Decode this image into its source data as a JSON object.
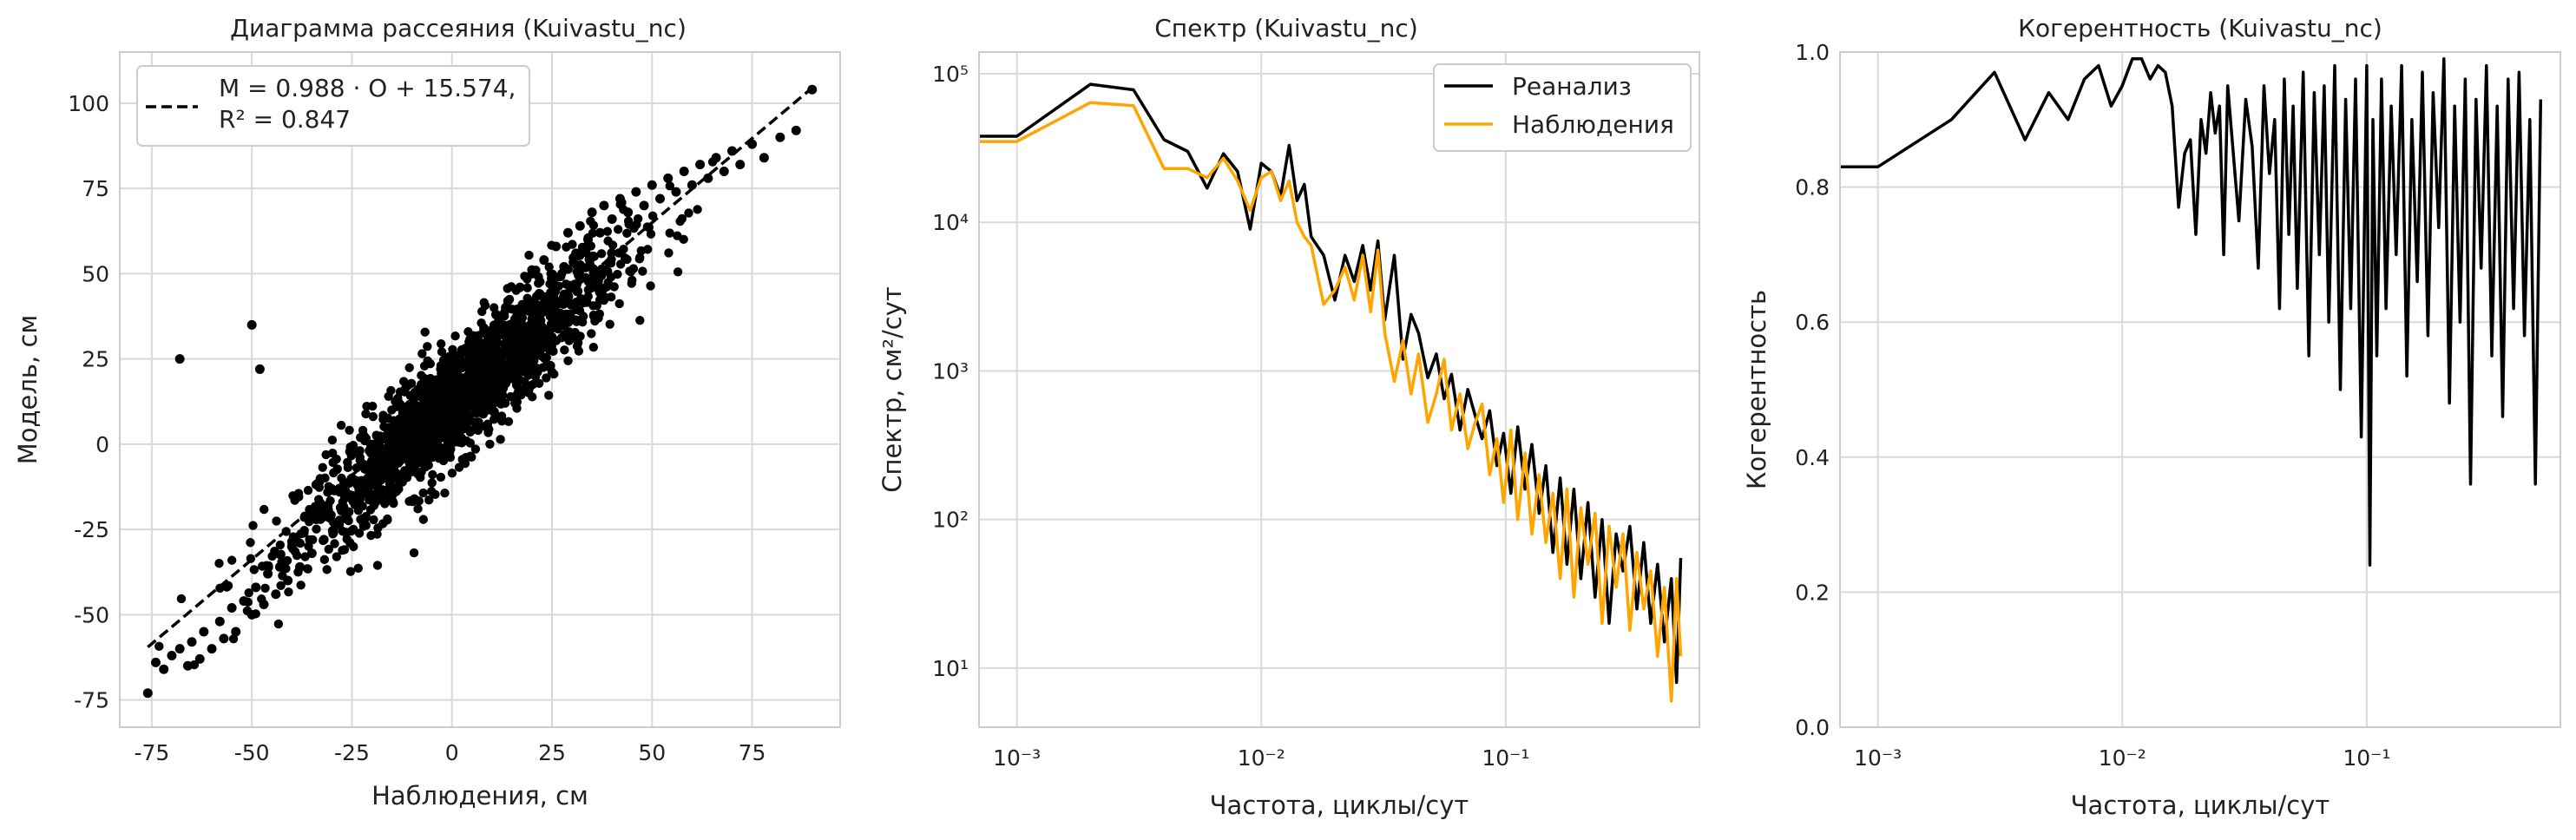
{
  "chart_data": [
    {
      "type": "scatter",
      "title": "Диаграмма рассеяния (Kuivastu_nc)",
      "xlabel": "Наблюдения, см",
      "ylabel": "Модель, см",
      "xlim": [
        -83,
        97
      ],
      "ylim": [
        -83,
        115
      ],
      "xticks": [
        -75,
        -50,
        -25,
        0,
        25,
        50,
        75
      ],
      "yticks": [
        -75,
        -50,
        -25,
        0,
        25,
        50,
        75,
        100
      ],
      "grid": true,
      "legend_position": "top-left",
      "legend": [
        "M = 0.988 · O + 15.574,",
        "R² = 0.847"
      ],
      "fit": {
        "slope": 0.988,
        "intercept": 15.574,
        "x_range": [
          -76,
          90
        ]
      },
      "points_color": "#000000",
      "points": [
        [
          -76,
          -73
        ],
        [
          -74,
          -64
        ],
        [
          -72,
          -66
        ],
        [
          -70,
          -62
        ],
        [
          -68,
          -60
        ],
        [
          -66,
          -65
        ],
        [
          -65,
          -58
        ],
        [
          -63,
          -63
        ],
        [
          -62,
          -55
        ],
        [
          -60,
          -60
        ],
        [
          -58,
          -52
        ],
        [
          -57,
          -57
        ],
        [
          -55,
          -48
        ],
        [
          -54,
          -55
        ],
        [
          -52,
          -46
        ],
        [
          -50,
          -50
        ],
        [
          -49,
          -42
        ],
        [
          -47,
          -47
        ],
        [
          -46,
          -38
        ],
        [
          -44,
          -44
        ],
        [
          -43,
          -36
        ],
        [
          -41,
          -40
        ],
        [
          -40,
          -30
        ],
        [
          -38,
          -36
        ],
        [
          -37,
          -26
        ],
        [
          -35,
          -32
        ],
        [
          -34,
          -22
        ],
        [
          -32,
          -28
        ],
        [
          -31,
          -18
        ],
        [
          -29,
          -24
        ],
        [
          -28,
          -14
        ],
        [
          -26,
          -20
        ],
        [
          -25,
          -10
        ],
        [
          -23,
          -16
        ],
        [
          -22,
          -6
        ],
        [
          -20,
          -12
        ],
        [
          -19,
          -2
        ],
        [
          -17,
          -8
        ],
        [
          -16,
          2
        ],
        [
          -14,
          -4
        ],
        [
          -13,
          6
        ],
        [
          -11,
          0
        ],
        [
          -10,
          10
        ],
        [
          -8,
          4
        ],
        [
          -7,
          14
        ],
        [
          -5,
          8
        ],
        [
          -4,
          18
        ],
        [
          -2,
          12
        ],
        [
          -1,
          22
        ],
        [
          1,
          16
        ],
        [
          2,
          26
        ],
        [
          4,
          20
        ],
        [
          5,
          30
        ],
        [
          7,
          24
        ],
        [
          8,
          34
        ],
        [
          10,
          28
        ],
        [
          11,
          38
        ],
        [
          13,
          32
        ],
        [
          14,
          42
        ],
        [
          16,
          36
        ],
        [
          17,
          46
        ],
        [
          19,
          40
        ],
        [
          20,
          50
        ],
        [
          22,
          44
        ],
        [
          23,
          54
        ],
        [
          25,
          48
        ],
        [
          26,
          58
        ],
        [
          28,
          52
        ],
        [
          29,
          62
        ],
        [
          31,
          56
        ],
        [
          32,
          64
        ],
        [
          34,
          60
        ],
        [
          35,
          68
        ],
        [
          37,
          62
        ],
        [
          38,
          70
        ],
        [
          40,
          66
        ],
        [
          42,
          72
        ],
        [
          44,
          68
        ],
        [
          46,
          74
        ],
        [
          48,
          70
        ],
        [
          50,
          76
        ],
        [
          52,
          72
        ],
        [
          54,
          78
        ],
        [
          56,
          74
        ],
        [
          58,
          80
        ],
        [
          60,
          76
        ],
        [
          62,
          82
        ],
        [
          64,
          78
        ],
        [
          66,
          84
        ],
        [
          68,
          80
        ],
        [
          70,
          86
        ],
        [
          72,
          82
        ],
        [
          75,
          88
        ],
        [
          78,
          84
        ],
        [
          82,
          90
        ],
        [
          86,
          92
        ],
        [
          90,
          104
        ],
        [
          -68,
          25
        ],
        [
          -50,
          35
        ],
        [
          -48,
          22
        ]
      ]
    },
    {
      "type": "line",
      "title": "Спектр (Kuivastu_nc)",
      "xlabel": "Частота, циклы/сут",
      "ylabel": "Спектр, см²/сут",
      "xscale": "log",
      "yscale": "log",
      "xlim": [
        0.0007,
        0.62
      ],
      "ylim": [
        4,
        140000
      ],
      "xticks": [
        0.001,
        0.01,
        0.1
      ],
      "xtick_labels": [
        "10⁻³",
        "10⁻²",
        "10⁻¹"
      ],
      "yticks": [
        10,
        100,
        1000,
        10000,
        100000
      ],
      "ytick_labels": [
        "10¹",
        "10²",
        "10³",
        "10⁴",
        "10⁵"
      ],
      "grid": true,
      "legend_position": "top-right",
      "series": [
        {
          "name": "Реанализ",
          "color": "#000000",
          "x": [
            0.0007,
            0.001,
            0.002,
            0.003,
            0.004,
            0.005,
            0.006,
            0.007,
            0.008,
            0.009,
            0.01,
            0.011,
            0.012,
            0.013,
            0.014,
            0.015,
            0.016,
            0.018,
            0.02,
            0.022,
            0.024,
            0.026,
            0.028,
            0.03,
            0.032,
            0.035,
            0.038,
            0.041,
            0.044,
            0.048,
            0.052,
            0.056,
            0.06,
            0.065,
            0.07,
            0.075,
            0.08,
            0.086,
            0.092,
            0.098,
            0.105,
            0.112,
            0.12,
            0.128,
            0.137,
            0.146,
            0.156,
            0.167,
            0.178,
            0.19,
            0.203,
            0.217,
            0.232,
            0.248,
            0.265,
            0.283,
            0.302,
            0.322,
            0.344,
            0.367,
            0.392,
            0.418,
            0.446,
            0.476,
            0.5,
            0.52
          ],
          "y": [
            38000,
            38000,
            85000,
            78000,
            36000,
            30000,
            17000,
            29000,
            22000,
            9000,
            25000,
            22000,
            15000,
            33000,
            14000,
            18000,
            8000,
            6000,
            3000,
            6000,
            4000,
            7000,
            3500,
            7500,
            2200,
            6000,
            1200,
            2400,
            1800,
            900,
            1300,
            650,
            950,
            400,
            750,
            500,
            350,
            540,
            230,
            380,
            150,
            420,
            160,
            320,
            110,
            230,
            60,
            190,
            50,
            160,
            40,
            130,
            30,
            100,
            20,
            80,
            45,
            90,
            25,
            70,
            20,
            50,
            15,
            40,
            8,
            55
          ]
        },
        {
          "name": "Наблюдения",
          "color": "#ffa500",
          "x": [
            0.0007,
            0.001,
            0.002,
            0.003,
            0.004,
            0.005,
            0.006,
            0.007,
            0.008,
            0.009,
            0.01,
            0.011,
            0.012,
            0.013,
            0.014,
            0.015,
            0.016,
            0.018,
            0.02,
            0.022,
            0.024,
            0.026,
            0.028,
            0.03,
            0.032,
            0.035,
            0.038,
            0.041,
            0.044,
            0.048,
            0.052,
            0.056,
            0.06,
            0.065,
            0.07,
            0.075,
            0.08,
            0.086,
            0.092,
            0.098,
            0.105,
            0.112,
            0.12,
            0.128,
            0.137,
            0.146,
            0.156,
            0.167,
            0.178,
            0.19,
            0.203,
            0.217,
            0.232,
            0.248,
            0.265,
            0.283,
            0.302,
            0.322,
            0.344,
            0.367,
            0.392,
            0.418,
            0.446,
            0.476,
            0.5,
            0.52
          ],
          "y": [
            35000,
            35000,
            64000,
            61000,
            23000,
            23000,
            20000,
            27000,
            19000,
            12000,
            20000,
            22000,
            14000,
            19000,
            10000,
            8000,
            7000,
            2800,
            3500,
            5000,
            3000,
            6000,
            2500,
            6500,
            1800,
            850,
            1600,
            700,
            1300,
            450,
            700,
            1200,
            400,
            700,
            300,
            450,
            600,
            200,
            350,
            130,
            400,
            100,
            280,
            80,
            200,
            70,
            150,
            40,
            160,
            30,
            120,
            50,
            110,
            20,
            90,
            35,
            80,
            18,
            60,
            25,
            45,
            12,
            35,
            6,
            40,
            12
          ]
        }
      ]
    },
    {
      "type": "line",
      "title": "Когерентность (Kuivastu_nc)",
      "xlabel": "Частота, циклы/сут",
      "ylabel": "Когерентность",
      "xscale": "log",
      "xlim": [
        0.0007,
        0.62
      ],
      "ylim": [
        0,
        1
      ],
      "xticks": [
        0.001,
        0.01,
        0.1
      ],
      "xtick_labels": [
        "10⁻³",
        "10⁻²",
        "10⁻¹"
      ],
      "yticks": [
        0,
        0.2,
        0.4,
        0.6,
        0.8,
        1.0
      ],
      "ytick_labels": [
        "0.0",
        "0.2",
        "0.4",
        "0.6",
        "0.8",
        "1.0"
      ],
      "grid": true,
      "series": [
        {
          "color": "#000000",
          "x": [
            0.0007,
            0.001,
            0.002,
            0.003,
            0.004,
            0.005,
            0.006,
            0.007,
            0.008,
            0.009,
            0.01,
            0.011,
            0.012,
            0.013,
            0.014,
            0.015,
            0.016,
            0.017,
            0.018,
            0.019,
            0.02,
            0.021,
            0.022,
            0.023,
            0.024,
            0.025,
            0.026,
            0.027,
            0.028,
            0.03,
            0.032,
            0.034,
            0.036,
            0.038,
            0.04,
            0.042,
            0.044,
            0.046,
            0.048,
            0.05,
            0.052,
            0.055,
            0.058,
            0.061,
            0.064,
            0.067,
            0.07,
            0.074,
            0.078,
            0.082,
            0.086,
            0.09,
            0.095,
            0.1,
            0.103,
            0.106,
            0.11,
            0.115,
            0.12,
            0.126,
            0.132,
            0.139,
            0.146,
            0.153,
            0.161,
            0.169,
            0.178,
            0.187,
            0.197,
            0.207,
            0.218,
            0.229,
            0.241,
            0.253,
            0.266,
            0.28,
            0.294,
            0.309,
            0.325,
            0.342,
            0.36,
            0.379,
            0.399,
            0.42,
            0.442,
            0.465,
            0.49,
            0.515
          ],
          "y": [
            0.83,
            0.83,
            0.9,
            0.97,
            0.87,
            0.94,
            0.9,
            0.96,
            0.98,
            0.92,
            0.95,
            0.99,
            0.99,
            0.96,
            0.98,
            0.97,
            0.92,
            0.77,
            0.85,
            0.87,
            0.73,
            0.9,
            0.85,
            0.94,
            0.88,
            0.92,
            0.7,
            0.95,
            0.88,
            0.75,
            0.93,
            0.86,
            0.68,
            0.95,
            0.82,
            0.9,
            0.62,
            0.96,
            0.73,
            0.92,
            0.65,
            0.97,
            0.55,
            0.94,
            0.7,
            0.95,
            0.6,
            0.98,
            0.5,
            0.93,
            0.62,
            0.96,
            0.43,
            0.98,
            0.24,
            0.9,
            0.55,
            0.96,
            0.62,
            0.92,
            0.7,
            0.98,
            0.52,
            0.9,
            0.66,
            0.97,
            0.58,
            0.94,
            0.74,
            0.99,
            0.48,
            0.92,
            0.6,
            0.96,
            0.36,
            0.93,
            0.68,
            0.98,
            0.55,
            0.92,
            0.46,
            0.96,
            0.62,
            0.97,
            0.58,
            0.9,
            0.36,
            0.93
          ]
        }
      ]
    }
  ]
}
